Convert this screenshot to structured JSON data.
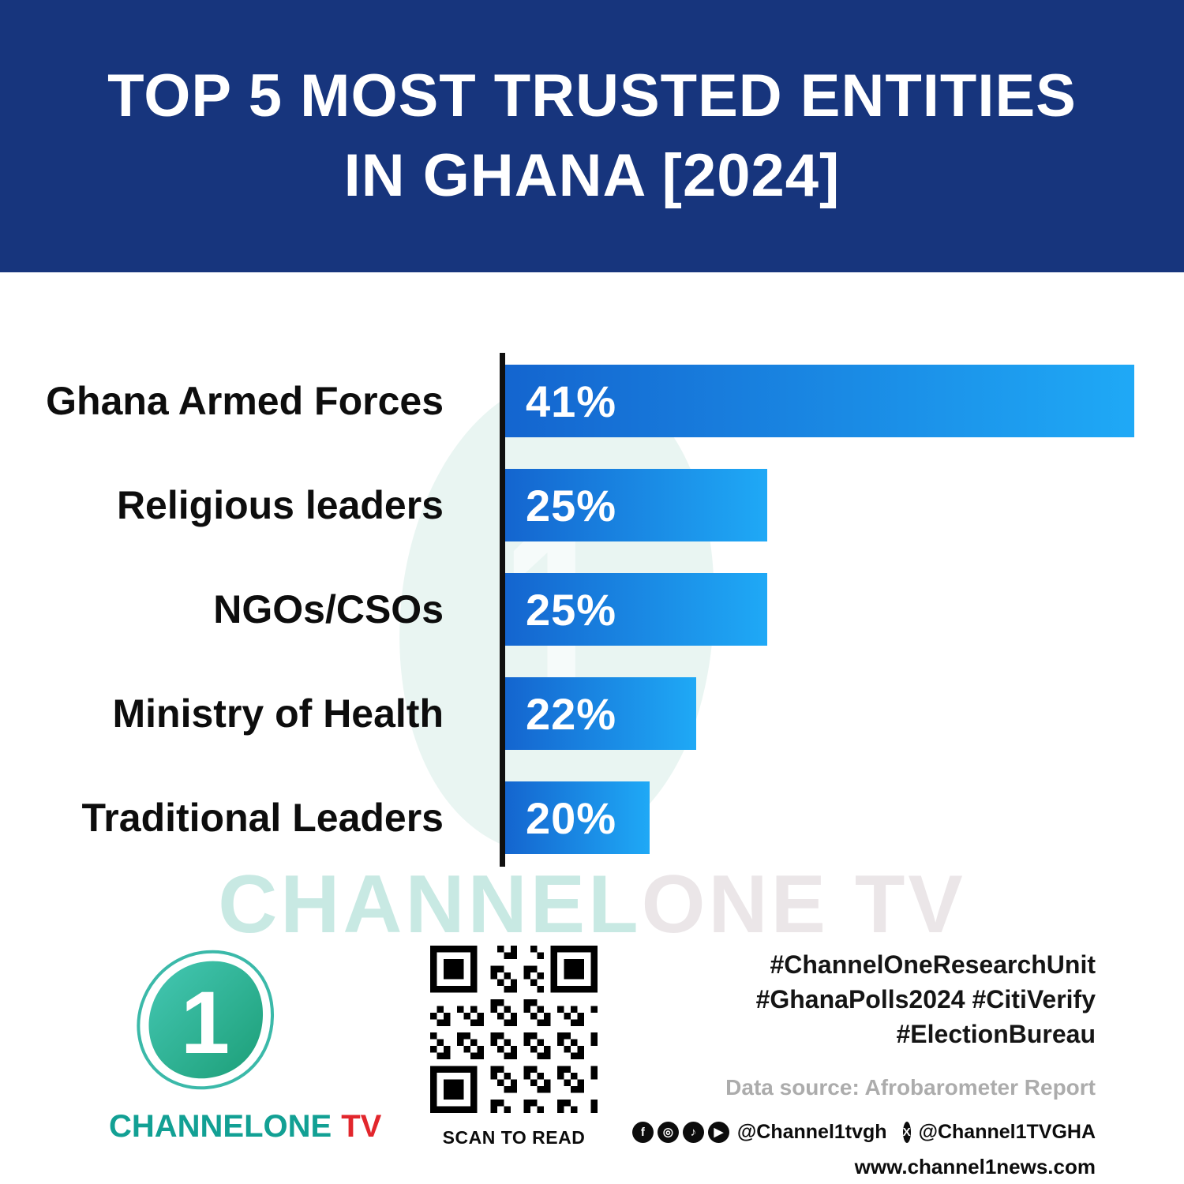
{
  "colors": {
    "header-bg": "#17357D",
    "bar-start": "#1465CF",
    "bar-end": "#1FA9F6",
    "teal": "#12A094",
    "red": "#E2262C",
    "gray": "#ACACAC",
    "watermark1": "#C8E9E3",
    "watermark2": "#EBE6E8",
    "ink": "#101010"
  },
  "header": {
    "title_line1": "TOP 5 MOST TRUSTED ENTITIES",
    "title_line2": "IN GHANA [2024]"
  },
  "chart_data": {
    "type": "bar",
    "orientation": "horizontal",
    "title": "Top 5 Most Trusted Entities in Ghana [2024]",
    "categories": [
      "Ghana Armed Forces",
      "Religious leaders",
      "NGOs/CSOs",
      "Ministry of Health",
      "Traditional Leaders"
    ],
    "values": [
      41,
      25,
      25,
      22,
      20
    ],
    "value_labels": [
      "41%",
      "25%",
      "25%",
      "22%",
      "20%"
    ],
    "display_width_pct": [
      100,
      41.6,
      41.6,
      30.4,
      22.9
    ],
    "xlabel": "",
    "ylabel": "",
    "xlim": [
      0,
      41
    ],
    "grid": false,
    "legend": false,
    "source": "Afrobarometer Report"
  },
  "watermark": {
    "part1": "CHANNEL",
    "part2": "ONE TV"
  },
  "footer": {
    "logo_one": "1",
    "logo_word_part1": "CHANNELONE",
    "logo_word_part2": "TV",
    "qr_caption": "SCAN TO READ",
    "hashtags_line1": "#ChannelOneResearchUnit",
    "hashtags_line2": "#GhanaPolls2024 #CitiVerify",
    "hashtags_line3": "#ElectionBureau",
    "data_source": "Data source: Afrobarometer Report",
    "handle_primary": "@Channel1tvgh",
    "handle_x": "@Channel1TVGHA",
    "website": "www.channel1news.com",
    "icons": {
      "facebook": "f",
      "instagram": "◎",
      "tiktok": "♪",
      "youtube": "▶",
      "x": "X"
    }
  }
}
